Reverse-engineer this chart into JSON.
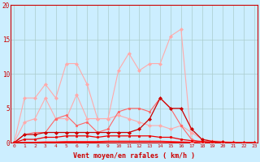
{
  "background_color": "#cceeff",
  "grid_color": "#aacccc",
  "x_label": "Vent moyen/en rafales ( km/h )",
  "x_ticks": [
    0,
    1,
    2,
    3,
    4,
    5,
    6,
    7,
    8,
    9,
    10,
    11,
    12,
    13,
    14,
    15,
    16,
    17,
    18,
    19,
    20,
    21,
    22,
    23
  ],
  "y_ticks": [
    0,
    5,
    10,
    15,
    20
  ],
  "xlim": [
    -0.3,
    23.3
  ],
  "ylim": [
    0,
    20
  ],
  "series": [
    {
      "color": "#ffaaaa",
      "marker": "D",
      "markersize": 2.0,
      "linewidth": 0.8,
      "y": [
        0,
        6.5,
        6.5,
        8.5,
        6.5,
        11.5,
        11.5,
        8.5,
        3.5,
        3.5,
        10.5,
        13.0,
        10.5,
        11.5,
        11.5,
        15.5,
        16.5,
        0,
        0,
        0,
        0,
        0,
        0,
        0
      ]
    },
    {
      "color": "#ffaaaa",
      "marker": "D",
      "markersize": 2.0,
      "linewidth": 0.8,
      "y": [
        0,
        3.0,
        3.5,
        6.5,
        3.5,
        3.5,
        7.0,
        3.5,
        3.5,
        3.5,
        4.0,
        3.5,
        3.0,
        2.5,
        2.5,
        2.0,
        2.5,
        1.5,
        0.5,
        0.3,
        0.2,
        0.1,
        0.05,
        0.0
      ]
    },
    {
      "color": "#ff6666",
      "marker": "s",
      "markersize": 2.0,
      "linewidth": 0.8,
      "y": [
        0,
        1.2,
        1.5,
        1.5,
        3.5,
        4.0,
        2.5,
        3.0,
        1.5,
        2.0,
        4.5,
        5.0,
        5.0,
        4.5,
        6.5,
        5.0,
        2.5,
        0.5,
        0,
        0,
        0,
        0,
        0,
        0
      ]
    },
    {
      "color": "#cc0000",
      "marker": "D",
      "markersize": 2.0,
      "linewidth": 0.9,
      "y": [
        0,
        1.2,
        1.2,
        1.5,
        1.5,
        1.5,
        1.5,
        1.5,
        1.5,
        1.5,
        1.5,
        1.5,
        2.0,
        3.5,
        6.5,
        5.0,
        5.0,
        2.0,
        0.5,
        0.2,
        0.1,
        0.0,
        0.0,
        0.0
      ]
    },
    {
      "color": "#ee0000",
      "marker": "s",
      "markersize": 1.5,
      "linewidth": 0.9,
      "y": [
        0,
        0.5,
        0.5,
        0.8,
        0.8,
        1.0,
        1.0,
        1.0,
        0.8,
        1.0,
        1.0,
        1.0,
        1.0,
        1.0,
        0.8,
        0.8,
        0.5,
        0.3,
        0.2,
        0.1,
        0.05,
        0.02,
        0.0,
        0.0
      ]
    },
    {
      "color": "#ff0000",
      "marker": null,
      "markersize": 0,
      "linewidth": 1.2,
      "y": [
        0,
        0.05,
        0.05,
        0.1,
        0.1,
        0.15,
        0.15,
        0.15,
        0.15,
        0.2,
        0.2,
        0.2,
        0.2,
        0.2,
        0.2,
        0.15,
        0.1,
        0.05,
        0.03,
        0.02,
        0.01,
        0.0,
        0.0,
        0.0
      ]
    }
  ]
}
